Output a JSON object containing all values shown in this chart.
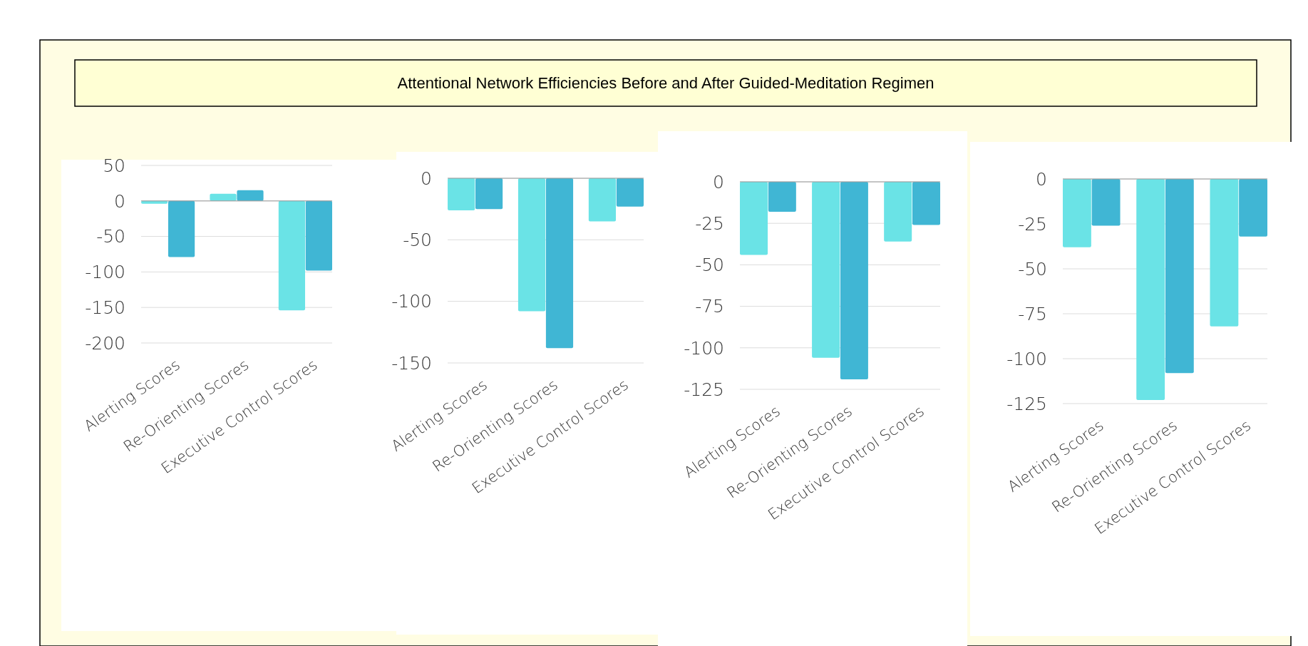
{
  "chart_data": [
    {
      "type": "other",
      "title": "Attentional Network Efficiencies Before and After Guided-Meditation Regimen"
    },
    {
      "type": "bar",
      "categories": [
        "Alerting Scores",
        "Re-Orienting Scores",
        "Executive Control Scores"
      ],
      "series": [
        {
          "color": "#6ae3e6",
          "values": [
            -4,
            10,
            -154
          ]
        },
        {
          "color": "#40b6d4",
          "values": [
            -79,
            15,
            -98
          ]
        }
      ],
      "ylim": [
        -200,
        50
      ],
      "yticks": [
        50,
        0,
        -50,
        -100,
        -150,
        -200
      ],
      "grid": "y"
    },
    {
      "type": "bar",
      "categories": [
        "Alerting Scores",
        "Re-Orienting Scores",
        "Executive Control Scores"
      ],
      "series": [
        {
          "color": "#6ae3e6",
          "values": [
            -26,
            -108,
            -35
          ]
        },
        {
          "color": "#40b6d4",
          "values": [
            -25,
            -138,
            -23
          ]
        }
      ],
      "ylim": [
        -150,
        0
      ],
      "yticks": [
        0,
        -50,
        -100,
        -150
      ],
      "grid": "y"
    },
    {
      "type": "bar",
      "categories": [
        "Alerting Scores",
        "Re-Orienting Scores",
        "Executive Control Scores"
      ],
      "series": [
        {
          "color": "#6ae3e6",
          "values": [
            -44,
            -106,
            -36
          ]
        },
        {
          "color": "#40b6d4",
          "values": [
            -18,
            -119,
            -26
          ]
        }
      ],
      "ylim": [
        -125,
        0
      ],
      "yticks": [
        0,
        -25,
        -50,
        -75,
        -100,
        -125
      ],
      "grid": "y"
    },
    {
      "type": "bar",
      "categories": [
        "Alerting Scores",
        "Re-Orienting Scores",
        "Executive Control Scores"
      ],
      "series": [
        {
          "color": "#6ae3e6",
          "values": [
            -38,
            -123,
            -82
          ]
        },
        {
          "color": "#40b6d4",
          "values": [
            -26,
            -108,
            -32
          ]
        }
      ],
      "ylim": [
        -125,
        0
      ],
      "yticks": [
        0,
        -25,
        -50,
        -75,
        -100,
        -125
      ],
      "grid": "y"
    }
  ]
}
